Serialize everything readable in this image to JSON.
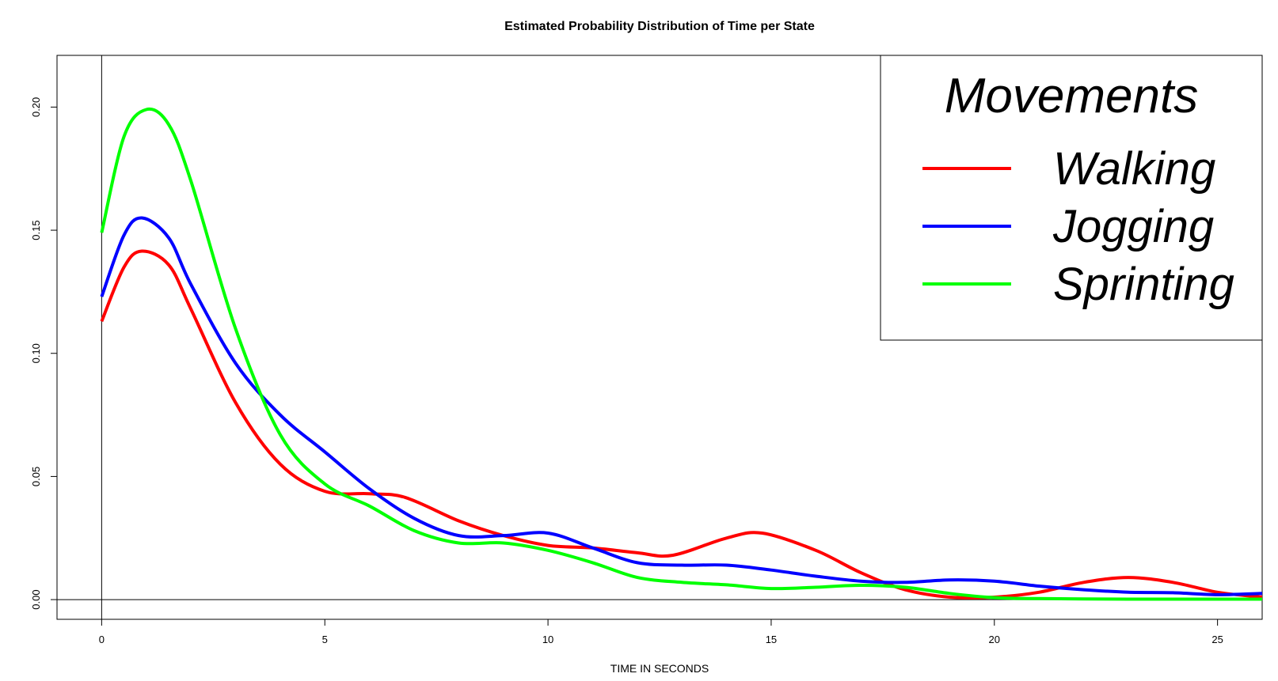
{
  "colors": {
    "walking": "#ff0000",
    "jogging": "#0000ff",
    "sprinting": "#00ff00",
    "axis": "#000000"
  },
  "chart_data": {
    "type": "line",
    "title": "Estimated Probability Distribution of Time per State",
    "xlabel": "TIME IN SECONDS",
    "ylabel": "",
    "xlim": [
      -1,
      26
    ],
    "ylim": [
      -0.008,
      0.221
    ],
    "x_ticks": [
      0,
      5,
      10,
      15,
      20,
      25
    ],
    "x_tick_labels": [
      "0",
      "5",
      "10",
      "15",
      "20",
      "25"
    ],
    "y_ticks": [
      0,
      0.05,
      0.1,
      0.15,
      0.2
    ],
    "y_tick_labels": [
      "0.00",
      "0.05",
      "0.10",
      "0.15",
      "0.20"
    ],
    "reference_lines": {
      "vertical_x": 0,
      "horizontal_y": 0
    },
    "legend": {
      "title": "Movements",
      "position": "top-right"
    },
    "series": [
      {
        "name": "Walking",
        "color": "#ff0000",
        "x": [
          0,
          0.5,
          0.9,
          1.5,
          2,
          3,
          4,
          5,
          6,
          6.8,
          8,
          9,
          10,
          11,
          12,
          12.8,
          14,
          14.8,
          16,
          17,
          18,
          19,
          20,
          21,
          22,
          23,
          24,
          25,
          26
        ],
        "y": [
          0.113,
          0.135,
          0.1415,
          0.136,
          0.118,
          0.08,
          0.055,
          0.044,
          0.043,
          0.0415,
          0.032,
          0.026,
          0.022,
          0.021,
          0.019,
          0.018,
          0.025,
          0.027,
          0.02,
          0.011,
          0.004,
          0.001,
          0.001,
          0.003,
          0.007,
          0.009,
          0.007,
          0.003,
          0.001
        ]
      },
      {
        "name": "Jogging",
        "color": "#0000ff",
        "x": [
          0,
          0.5,
          0.9,
          1.5,
          2,
          3,
          4,
          5,
          6,
          7,
          8,
          9,
          10,
          11,
          12,
          13,
          14,
          15,
          16,
          17,
          18,
          19,
          20,
          21,
          22,
          23,
          24,
          25,
          26
        ],
        "y": [
          0.123,
          0.148,
          0.155,
          0.147,
          0.128,
          0.096,
          0.075,
          0.06,
          0.045,
          0.033,
          0.026,
          0.026,
          0.027,
          0.021,
          0.015,
          0.014,
          0.014,
          0.012,
          0.0095,
          0.0075,
          0.007,
          0.008,
          0.0075,
          0.0055,
          0.004,
          0.003,
          0.0028,
          0.002,
          0.0025
        ]
      },
      {
        "name": "Sprinting",
        "color": "#00ff00",
        "x": [
          0,
          0.5,
          1,
          1.5,
          2,
          3,
          4,
          5,
          6,
          7,
          8,
          9,
          10,
          11,
          12,
          13,
          14,
          15,
          16,
          17,
          18,
          19,
          20,
          21,
          22,
          23,
          24,
          25,
          26
        ],
        "y": [
          0.149,
          0.188,
          0.199,
          0.193,
          0.17,
          0.11,
          0.067,
          0.047,
          0.038,
          0.028,
          0.023,
          0.023,
          0.02,
          0.015,
          0.009,
          0.007,
          0.006,
          0.0045,
          0.005,
          0.0058,
          0.005,
          0.0025,
          0.0008,
          0.0004,
          0.0003,
          0.0002,
          0.0002,
          0.0002,
          0.0002
        ]
      }
    ]
  }
}
